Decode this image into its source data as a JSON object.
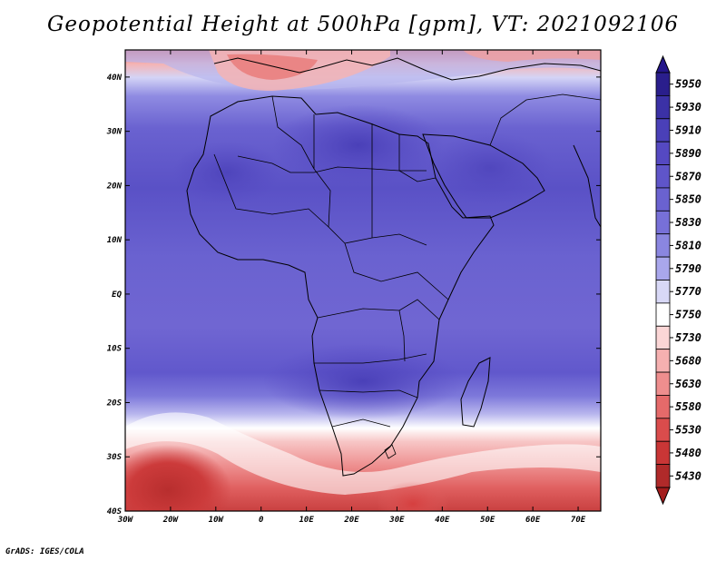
{
  "title": "Geopotential Height at 500hPa [gpm], VT: 2021092106",
  "credit": "GrADS: IGES/COLA",
  "map": {
    "projection": "latlon",
    "lon_range": [
      -30,
      75
    ],
    "lat_range": [
      -40,
      45
    ],
    "x_ticks": [
      "30W",
      "20W",
      "10W",
      "0",
      "10E",
      "20E",
      "30E",
      "40E",
      "50E",
      "60E",
      "70E"
    ],
    "y_ticks": [
      "40S",
      "30S",
      "20S",
      "10S",
      "EQ",
      "10N",
      "20N",
      "30N",
      "40N"
    ]
  },
  "colorbar": {
    "levels": [
      "5950",
      "5930",
      "5910",
      "5890",
      "5870",
      "5850",
      "5830",
      "5810",
      "5790",
      "5770",
      "5750",
      "5730",
      "5680",
      "5630",
      "5580",
      "5530",
      "5480",
      "5430"
    ],
    "colors": [
      "#2a1e8c",
      "#3b31a6",
      "#4a40b8",
      "#5549c2",
      "#5f55c9",
      "#6a62d0",
      "#7770d8",
      "#8a86e0",
      "#a9a7ec",
      "#d8d8f6",
      "#ffffff",
      "#fbd6d6",
      "#f5b0b0",
      "#ee8e8e",
      "#e56a6a",
      "#da4c4c",
      "#c93636",
      "#b02a2a"
    ],
    "top_color": "#24168a",
    "bottom_color": "#a31c1c"
  }
}
